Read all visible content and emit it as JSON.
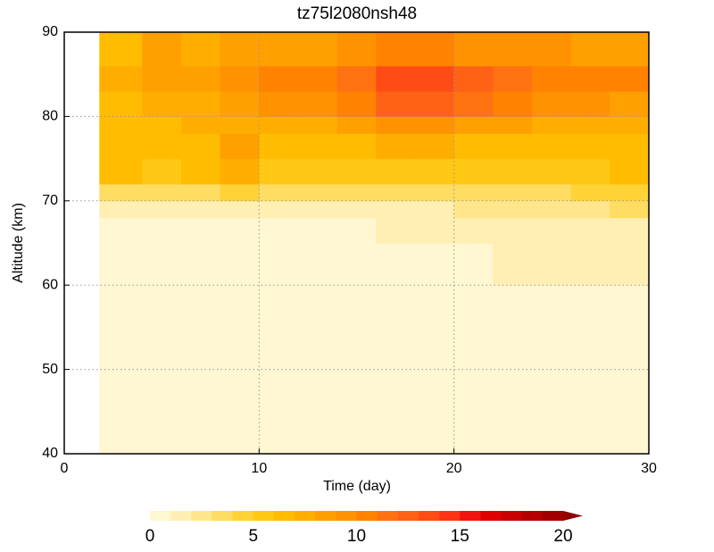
{
  "chart_data": {
    "type": "contourf",
    "title": "tz75l2080nsh48",
    "x_label": "Time (day)",
    "y_label": "Altitude (km)",
    "xlim": [
      0,
      30
    ],
    "ylim": [
      40,
      90
    ],
    "xticks": [
      0,
      10,
      20,
      30
    ],
    "yticks": [
      40,
      50,
      60,
      70,
      80,
      90
    ],
    "grid": true,
    "x_edges": [
      1.8,
      4,
      6,
      8,
      10,
      12,
      14,
      16,
      18,
      20,
      22,
      24,
      26,
      28,
      30
    ],
    "y_edges": [
      40,
      60,
      65,
      68,
      70,
      72,
      75,
      78,
      80,
      83,
      86,
      90
    ],
    "values": [
      [
        0.5,
        0.5,
        0.5,
        0.5,
        0.5,
        0.5,
        0.5,
        0.5,
        0.5,
        0.5,
        0.5,
        0.5,
        0.5,
        0.5
      ],
      [
        0.5,
        0.5,
        0.5,
        0.5,
        0.5,
        0.5,
        0.5,
        0.5,
        0.5,
        0.5,
        1.5,
        1.5,
        1.5,
        1.5
      ],
      [
        0.5,
        0.5,
        0.5,
        0.5,
        0.5,
        0.5,
        0.5,
        1.5,
        1.5,
        1.5,
        1.5,
        1.5,
        1.5,
        1.5
      ],
      [
        1.5,
        1.5,
        1.5,
        1.5,
        1.5,
        1.5,
        1.5,
        1.5,
        1.5,
        2.5,
        2.5,
        2.5,
        2.5,
        3.5
      ],
      [
        3.5,
        3.5,
        3.5,
        4.5,
        3.5,
        3.5,
        3.5,
        3.5,
        3.5,
        3.5,
        3.5,
        3.5,
        4.5,
        4.5
      ],
      [
        6.5,
        5.5,
        6.5,
        7.5,
        5.5,
        5.5,
        5.5,
        5.5,
        5.5,
        5.5,
        5.5,
        5.5,
        5.5,
        6.5
      ],
      [
        6.5,
        6.5,
        6.5,
        8.5,
        6.5,
        6.5,
        6.5,
        7.5,
        7.5,
        6.5,
        6.5,
        6.5,
        6.5,
        6.5
      ],
      [
        6.5,
        6.5,
        7.5,
        7.5,
        7.5,
        7.5,
        8.5,
        9.5,
        9.5,
        8.5,
        8.5,
        7.5,
        7.5,
        7.5
      ],
      [
        6.5,
        7.5,
        7.5,
        8.5,
        9.5,
        9.5,
        10.5,
        12.5,
        12.5,
        11.5,
        10.5,
        9.5,
        9.5,
        8.5
      ],
      [
        7.5,
        8.5,
        8.5,
        9.5,
        10.5,
        10.5,
        11.5,
        13.5,
        13.5,
        12.5,
        11.5,
        10.5,
        10.5,
        10.5
      ],
      [
        6.5,
        8.5,
        7.5,
        8.5,
        8.5,
        8.5,
        9.5,
        10.5,
        10.5,
        9.5,
        9.5,
        9.5,
        8.5,
        8.5
      ]
    ],
    "colorbar": {
      "levels": [
        0,
        1,
        2,
        3,
        4,
        5,
        6,
        7,
        8,
        9,
        10,
        11,
        12,
        13,
        14,
        15,
        16,
        17,
        18,
        19,
        20
      ],
      "colors": [
        "#fff6d2",
        "#ffefb2",
        "#ffe68c",
        "#ffdc62",
        "#ffd236",
        "#ffc814",
        "#ffbc00",
        "#ffae00",
        "#ffa000",
        "#ff9200",
        "#ff8200",
        "#ff7212",
        "#ff6214",
        "#ff4c14",
        "#ff3414",
        "#f21410",
        "#e00000",
        "#ca0000",
        "#b40000",
        "#a20000",
        "#900000"
      ],
      "ticks": [
        0,
        5,
        10,
        15,
        20
      ]
    }
  }
}
